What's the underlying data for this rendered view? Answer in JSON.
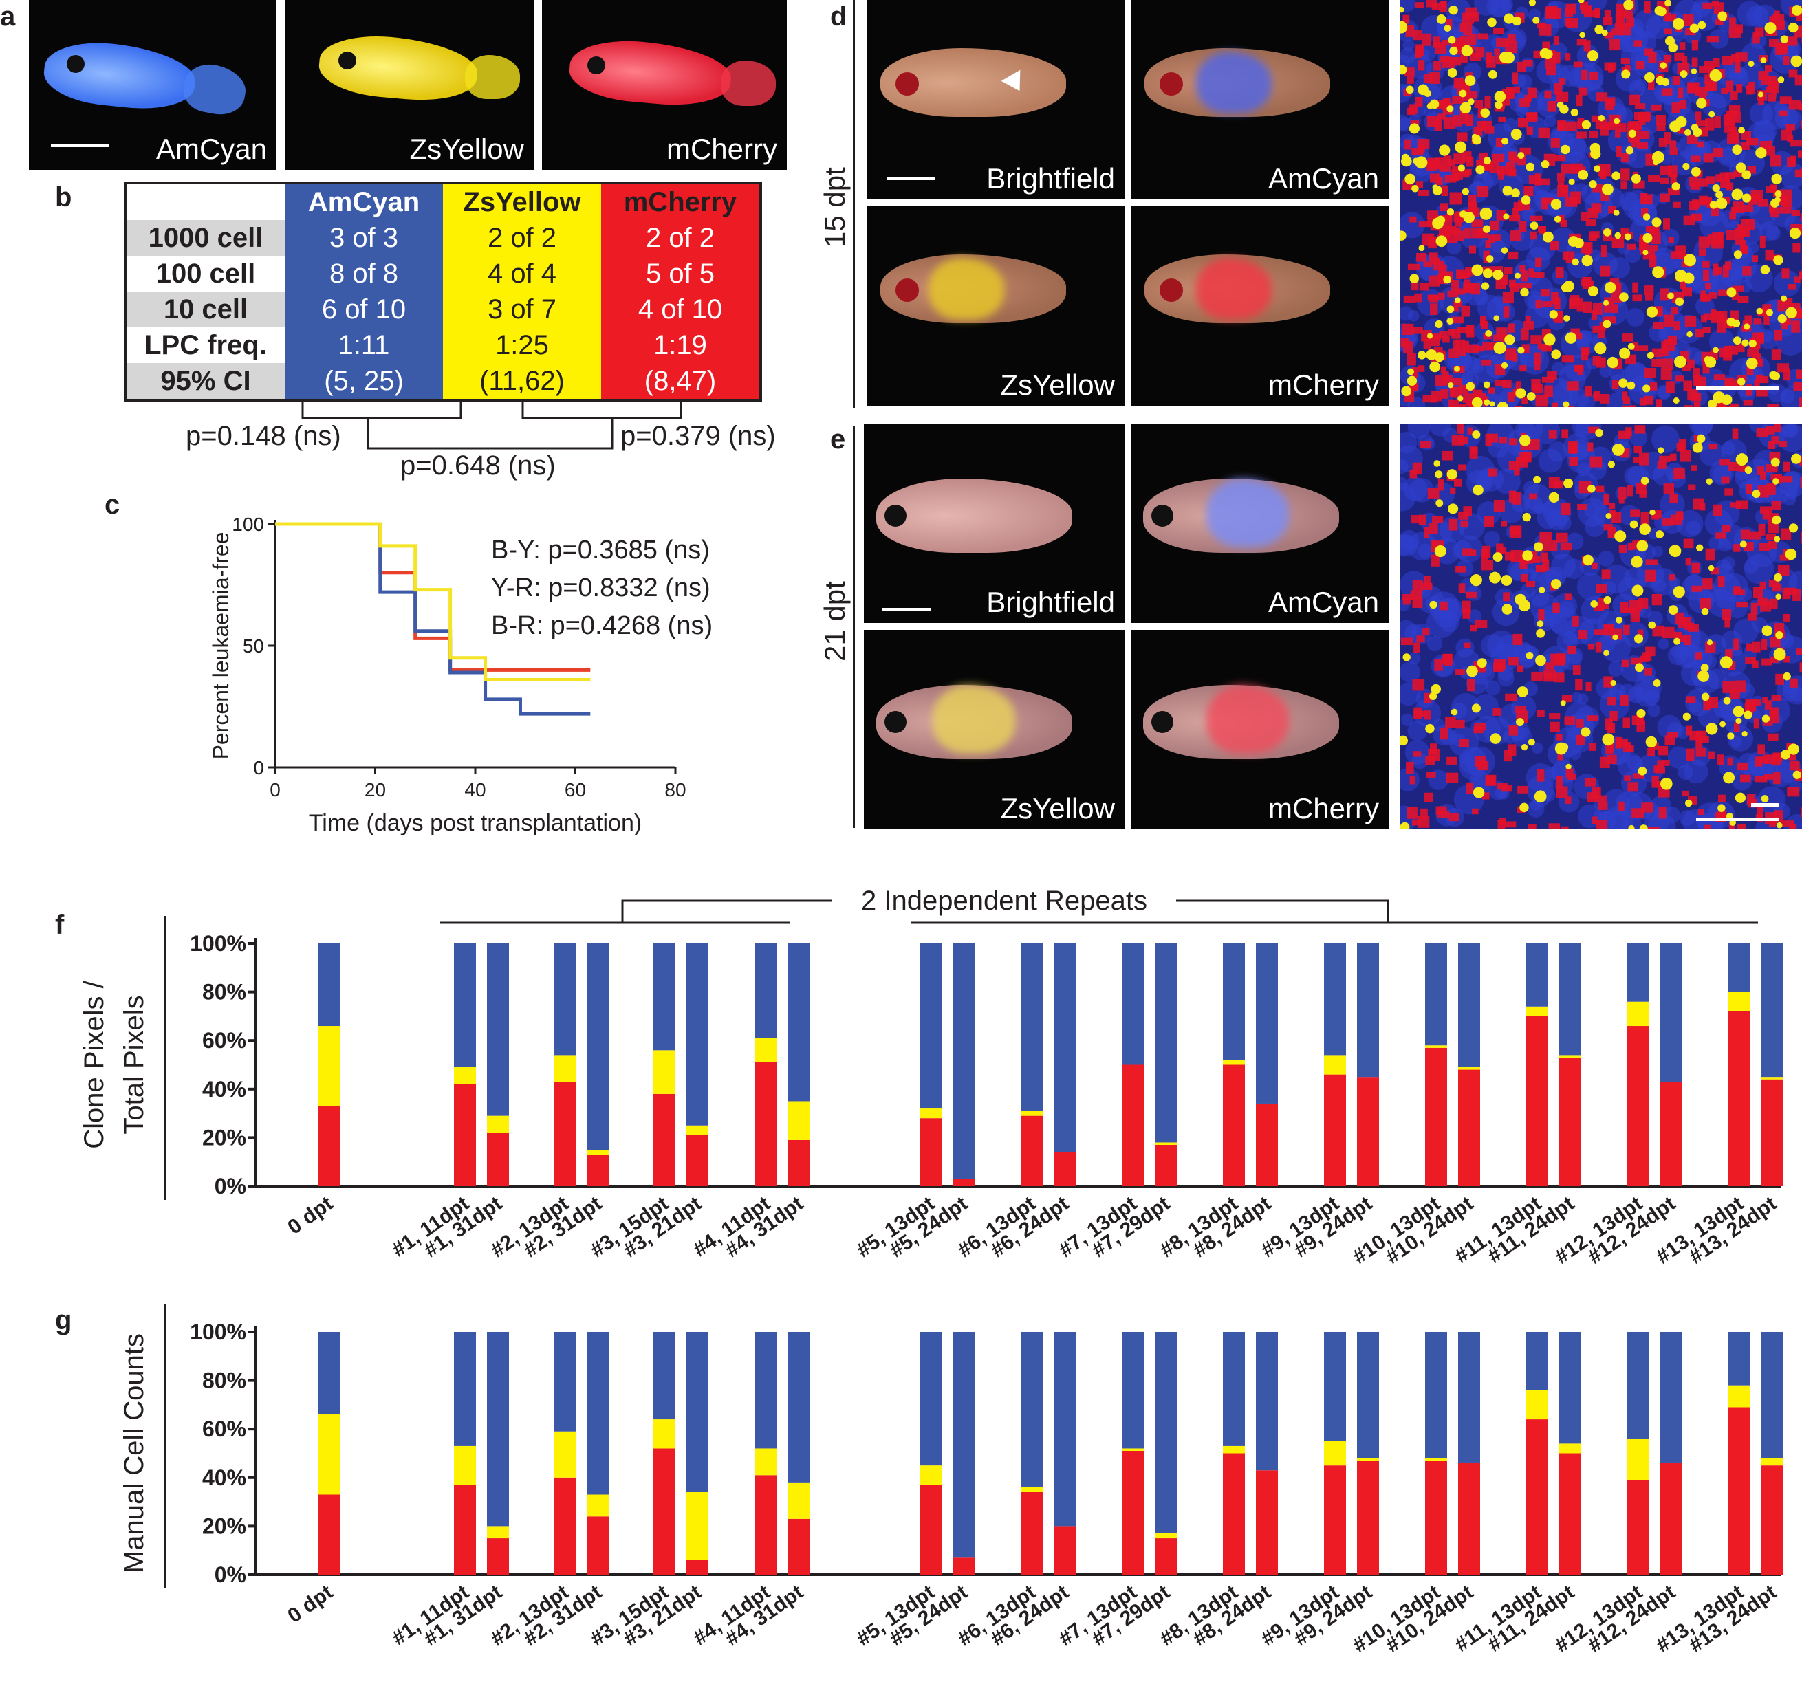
{
  "panels": {
    "a": "a",
    "b": "b",
    "c": "c",
    "d": "d",
    "e": "e",
    "f": "f",
    "g": "g"
  },
  "panel_a": {
    "labels": [
      "AmCyan",
      "ZsYellow",
      "mCherry"
    ],
    "fish_colors": [
      "#4a7ff7",
      "#f2e01c",
      "#f0364a"
    ]
  },
  "panel_b": {
    "columns": [
      "AmCyan",
      "ZsYellow",
      "mCherry"
    ],
    "rows": [
      {
        "label": "1000 cell",
        "values": [
          "3 of 3",
          "2 of 2",
          "2 of 2"
        ]
      },
      {
        "label": "100 cell",
        "values": [
          "8 of 8",
          "4 of 4",
          "5 of 5"
        ]
      },
      {
        "label": "10 cell",
        "values": [
          "6 of 10",
          "3 of 7",
          "4 of 10"
        ]
      },
      {
        "label": "LPC freq.",
        "values": [
          "1:11",
          "1:25",
          "1:19"
        ]
      },
      {
        "label": "95% CI",
        "values": [
          "(5, 25)",
          "(11,62)",
          "(8,47)"
        ]
      }
    ],
    "comparisons": [
      "p=0.148 (ns)",
      "p=0.648 (ns)",
      "p=0.379 (ns)"
    ]
  },
  "panel_d": {
    "time_label": "15 dpt",
    "labels": [
      "Brightfield",
      "AmCyan",
      "ZsYellow",
      "mCherry"
    ]
  },
  "panel_e": {
    "time_label": "21 dpt",
    "labels": [
      "Brightfield",
      "AmCyan",
      "ZsYellow",
      "mCherry"
    ]
  },
  "colors": {
    "blue": "#3b58a8",
    "yellow": "#fff200",
    "red": "#ed1c24",
    "survival_red": "#e8402a",
    "survival_yellow": "#f4e425",
    "survival_blue": "#3d5aa8"
  },
  "chart_data": [
    {
      "type": "line",
      "panel": "c",
      "xlabel": "Time (days post transplantation)",
      "ylabel": "Percent leukaemia-free",
      "xlim": [
        0,
        80
      ],
      "ylim": [
        0,
        100
      ],
      "xticks": [
        "0",
        "20",
        "40",
        "60",
        "80"
      ],
      "yticks": [
        "0",
        "50",
        "100"
      ],
      "annotations": [
        "B-Y: p=0.3685 (ns)",
        "Y-R: p=0.8332 (ns)",
        "B-R: p=0.4268 (ns)"
      ],
      "series": [
        {
          "color": "#e8402a",
          "x": [
            0,
            21,
            28,
            35,
            42,
            63
          ],
          "y": [
            100,
            80,
            53,
            40,
            40,
            40
          ]
        },
        {
          "color": "#3d5aa8",
          "x": [
            0,
            21,
            28,
            35,
            42,
            49,
            63
          ],
          "y": [
            100,
            72,
            56,
            39,
            28,
            22,
            22
          ]
        },
        {
          "color": "#f4e425",
          "x": [
            0,
            21,
            28,
            35,
            42,
            63
          ],
          "y": [
            100,
            91,
            73,
            45,
            36,
            36
          ]
        }
      ]
    },
    {
      "type": "bar",
      "panel": "f",
      "stacked": true,
      "ylabel": "Clone Pixels / Total Pixels",
      "ylim": [
        0,
        100
      ],
      "yticks": [
        "0%",
        "20%",
        "40%",
        "60%",
        "80%",
        "100%"
      ],
      "bracket_label": "2 Independent Repeats",
      "categories": [
        "0 dpt",
        "#1, 11dpt",
        "#1, 31dpt",
        "#2, 13dpt",
        "#2, 31dpt",
        "#3, 15dpt",
        "#3, 21dpt",
        "#4, 11dpt",
        "#4, 31dpt",
        "#5, 13dpt",
        "#5, 24dpt",
        "#6, 13dpt",
        "#6, 24dpt",
        "#7, 13dpt",
        "#7, 29dpt",
        "#8, 13dpt",
        "#8, 24dpt",
        "#9, 13dpt",
        "#9, 24dpt",
        "#10, 13dpt",
        "#10, 24dpt",
        "#11, 13dpt",
        "#11, 24dpt",
        "#12, 13dpt",
        "#12, 24dpt",
        "#13, 13dpt",
        "#13, 24dpt"
      ],
      "series": [
        {
          "color": "#ed1c24",
          "values": [
            33,
            42,
            22,
            43,
            13,
            38,
            21,
            51,
            19,
            28,
            3,
            29,
            14,
            50,
            17,
            50,
            34,
            46,
            45,
            57,
            48,
            70,
            53,
            66,
            43,
            72,
            44
          ]
        },
        {
          "color": "#fff200",
          "values": [
            33,
            7,
            7,
            11,
            2,
            18,
            4,
            10,
            16,
            4,
            0,
            2,
            0,
            0,
            1,
            2,
            0,
            8,
            0,
            1,
            1,
            4,
            1,
            10,
            0,
            8,
            1
          ]
        },
        {
          "color": "#3b58a8",
          "values": [
            34,
            51,
            71,
            46,
            85,
            44,
            75,
            39,
            65,
            68,
            97,
            69,
            86,
            50,
            82,
            48,
            66,
            46,
            55,
            42,
            51,
            26,
            46,
            24,
            57,
            20,
            55
          ]
        }
      ]
    },
    {
      "type": "bar",
      "panel": "g",
      "stacked": true,
      "ylabel": "Manual Cell Counts",
      "ylim": [
        0,
        100
      ],
      "yticks": [
        "0%",
        "20%",
        "40%",
        "60%",
        "80%",
        "100%"
      ],
      "categories": [
        "0 dpt",
        "#1, 11dpt",
        "#1, 31dpt",
        "#2, 13dpt",
        "#2, 31dpt",
        "#3, 15dpt",
        "#3, 21dpt",
        "#4, 11dpt",
        "#4, 31dpt",
        "#5, 13dpt",
        "#5, 24dpt",
        "#6, 13dpt",
        "#6, 24dpt",
        "#7, 13dpt",
        "#7, 29dpt",
        "#8, 13dpt",
        "#8, 24dpt",
        "#9, 13dpt",
        "#9, 24dpt",
        "#10, 13dpt",
        "#10, 24dpt",
        "#11, 13dpt",
        "#11, 24dpt",
        "#12, 13dpt",
        "#12, 24dpt",
        "#13, 13dpt",
        "#13, 24dpt"
      ],
      "series": [
        {
          "color": "#ed1c24",
          "values": [
            33,
            37,
            15,
            40,
            24,
            52,
            6,
            41,
            23,
            37,
            7,
            34,
            20,
            51,
            15,
            50,
            43,
            45,
            47,
            47,
            46,
            64,
            50,
            39,
            46,
            69,
            45
          ]
        },
        {
          "color": "#fff200",
          "values": [
            33,
            16,
            5,
            19,
            9,
            12,
            28,
            11,
            15,
            8,
            0,
            2,
            0,
            1,
            2,
            3,
            0,
            10,
            1,
            1,
            0,
            12,
            4,
            17,
            0,
            9,
            3
          ]
        },
        {
          "color": "#3b58a8",
          "values": [
            34,
            47,
            80,
            41,
            67,
            36,
            66,
            48,
            62,
            55,
            93,
            64,
            80,
            48,
            83,
            47,
            57,
            45,
            52,
            52,
            54,
            24,
            46,
            44,
            54,
            22,
            52
          ]
        }
      ]
    }
  ]
}
